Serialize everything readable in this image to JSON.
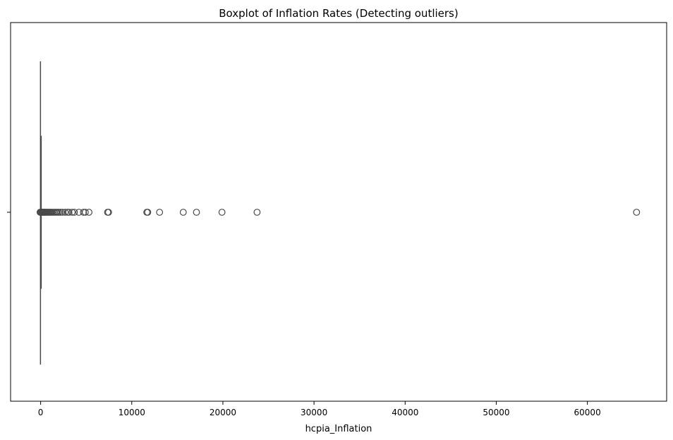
{
  "chart_data": {
    "type": "boxplot",
    "title": "Boxplot of Inflation Rates (Detecting outliers)",
    "xlabel": "hcpia_Inflation",
    "ylabel": "",
    "orientation": "horizontal",
    "xlim": [
      -3300,
      68700
    ],
    "xticks": [
      0,
      10000,
      20000,
      30000,
      40000,
      50000,
      60000
    ],
    "xtick_labels": [
      "0",
      "10000",
      "20000",
      "30000",
      "40000",
      "50000",
      "60000"
    ],
    "yticks": [
      ""
    ],
    "grid": false,
    "legend": "none",
    "box": {
      "min": -20,
      "q1": 2,
      "median": 5,
      "q3": 12,
      "max": 25
    },
    "outliers": [
      -60,
      -30,
      40,
      80,
      120,
      160,
      200,
      250,
      300,
      350,
      400,
      460,
      520,
      600,
      680,
      760,
      850,
      950,
      1050,
      1150,
      1250,
      1400,
      1550,
      1700,
      1850,
      2000,
      2200,
      2400,
      2700,
      2950,
      3100,
      3450,
      3700,
      4200,
      4700,
      4900,
      5300,
      7350,
      7450,
      11650,
      11750,
      13050,
      15650,
      17100,
      19900,
      23750,
      65400
    ],
    "colors": {
      "box_line": "#4a4a4a",
      "outlier_edge": "#4a4a4a",
      "axis": "#000000"
    }
  }
}
